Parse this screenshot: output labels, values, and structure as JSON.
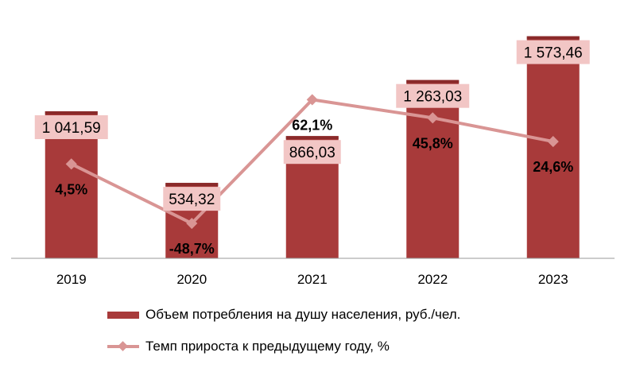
{
  "chart_data": {
    "type": "bar",
    "categories": [
      "2019",
      "2020",
      "2021",
      "2022",
      "2023"
    ],
    "series": [
      {
        "name": "Объем потребления на душу населения, руб./чел.",
        "type": "bar",
        "values": [
          1041.59,
          534.32,
          866.03,
          1263.03,
          1573.46
        ],
        "labels": [
          "1 041,59",
          "534,32",
          "866,03",
          "1 263,03",
          "1 573,46"
        ],
        "color": "#a83a3a"
      },
      {
        "name": "Темп прироста к предыдущему году, %",
        "type": "line",
        "axis": "secondary",
        "values": [
          4.5,
          -48.7,
          62.1,
          45.8,
          24.6
        ],
        "labels": [
          "4,5%",
          "-48,7%",
          "62,1%",
          "45,8%",
          "24,6%"
        ],
        "color": "#d99594"
      }
    ],
    "ylim": [
      0,
      1740
    ],
    "ylim_secondary": [
      -80,
      140
    ],
    "grid": false,
    "legend": "bottom",
    "label_bg": "#f2c6c5"
  }
}
